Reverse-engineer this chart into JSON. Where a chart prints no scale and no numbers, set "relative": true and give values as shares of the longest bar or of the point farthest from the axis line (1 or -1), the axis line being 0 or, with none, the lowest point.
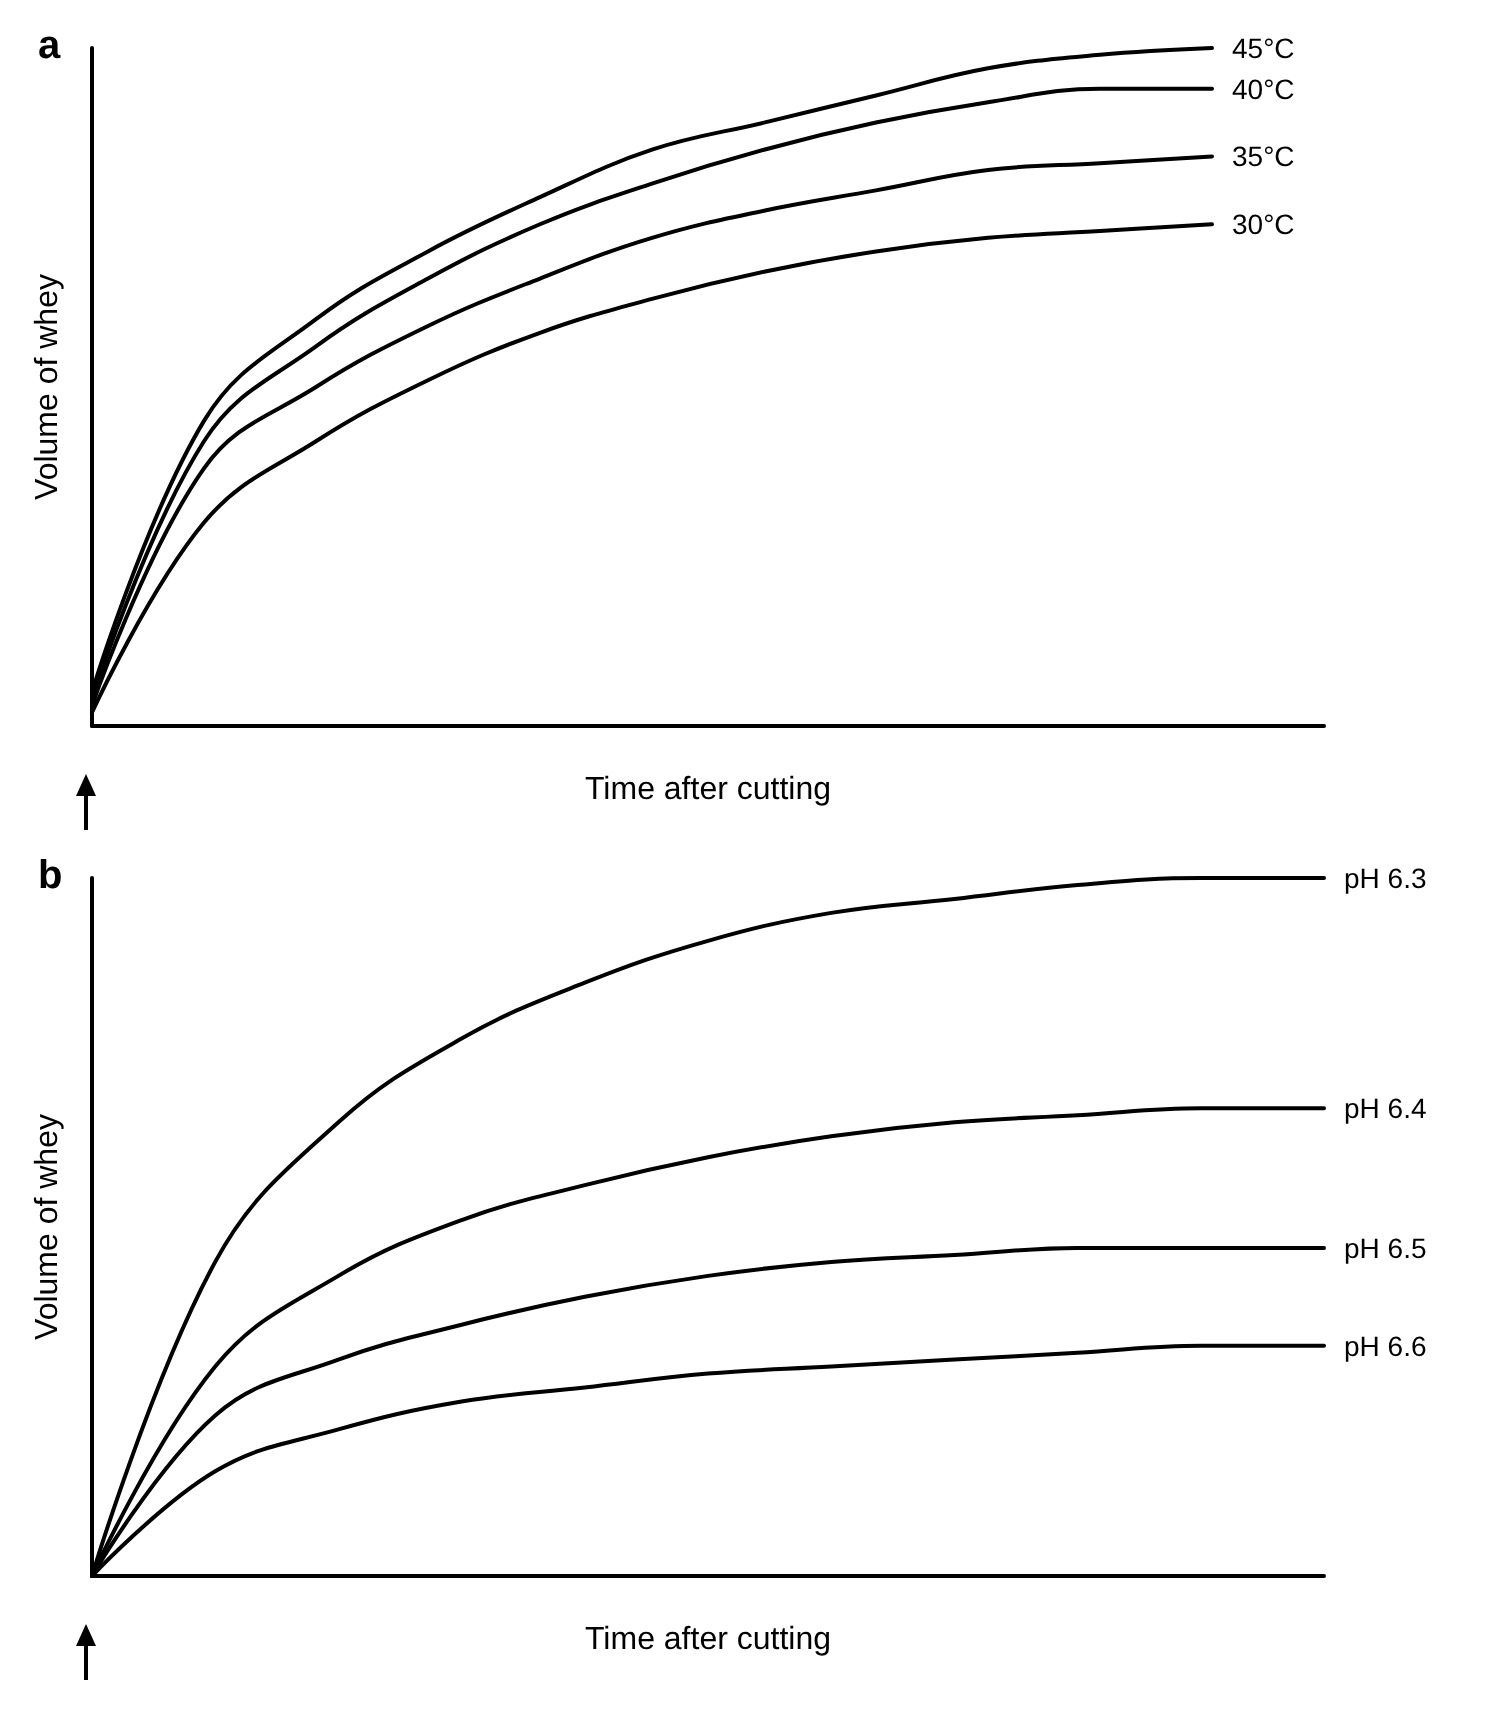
{
  "chart_data": [
    {
      "type": "line",
      "title": "a",
      "xlabel": "Time after cutting",
      "ylabel": "Volume of whey",
      "relative": true,
      "legend": false,
      "grid": false,
      "marker": "none",
      "line_style": "solid",
      "categories": [
        null,
        null,
        null,
        null,
        null,
        null,
        null,
        null,
        null,
        null,
        null,
        null
      ],
      "series": [
        {
          "name": "45°C",
          "color": "#000000",
          "values": [
            0.05,
            0.45,
            0.6,
            0.7,
            0.78,
            0.85,
            0.89,
            0.93,
            0.97,
            0.99,
            1,
            null
          ]
        },
        {
          "name": "40°C",
          "color": "#000000",
          "values": [
            0.04,
            0.42,
            0.56,
            0.66,
            0.74,
            0.8,
            0.85,
            0.89,
            0.92,
            0.94,
            0.94,
            null
          ]
        },
        {
          "name": "35°C",
          "color": "#000000",
          "values": [
            0.03,
            0.38,
            0.5,
            0.59,
            0.66,
            0.72,
            0.76,
            0.79,
            0.82,
            0.83,
            0.84,
            null
          ]
        },
        {
          "name": "30°C",
          "color": "#000000",
          "values": [
            0.02,
            0.3,
            0.42,
            0.51,
            0.58,
            0.63,
            0.67,
            0.7,
            0.72,
            0.73,
            0.74,
            null
          ]
        }
      ]
    },
    {
      "type": "line",
      "title": "b",
      "xlabel": "Time after cutting",
      "ylabel": "Volume of whey",
      "relative": true,
      "legend": false,
      "grid": false,
      "marker": "none",
      "line_style": "solid",
      "categories": [
        null,
        null,
        null,
        null,
        null,
        null,
        null,
        null,
        null,
        null,
        null
      ],
      "series": [
        {
          "name": "pH 6.3",
          "color": "#000000",
          "values": [
            0,
            0.45,
            0.65,
            0.77,
            0.85,
            0.91,
            0.95,
            0.97,
            0.99,
            1,
            1
          ]
        },
        {
          "name": "pH 6.4",
          "color": "#000000",
          "values": [
            0,
            0.3,
            0.43,
            0.51,
            0.56,
            0.6,
            0.63,
            0.65,
            0.66,
            0.67,
            0.67
          ]
        },
        {
          "name": "pH 6.5",
          "color": "#000000",
          "values": [
            0,
            0.23,
            0.31,
            0.36,
            0.4,
            0.43,
            0.45,
            0.46,
            0.47,
            0.47,
            0.47
          ]
        },
        {
          "name": "pH 6.6",
          "color": "#000000",
          "values": [
            0,
            0.15,
            0.21,
            0.25,
            0.27,
            0.29,
            0.3,
            0.31,
            0.32,
            0.33,
            0.33
          ]
        }
      ]
    }
  ]
}
